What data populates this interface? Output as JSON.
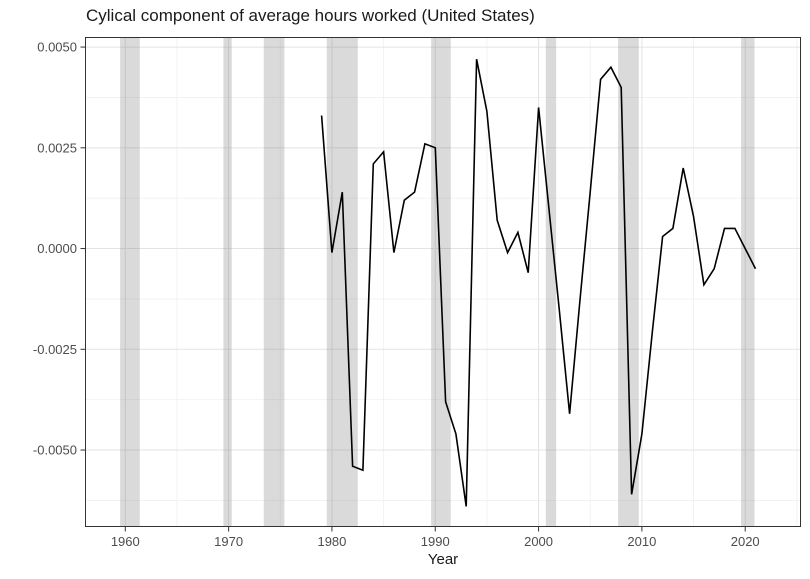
{
  "figure": {
    "title": "Cylical component of average hours worked (United States)",
    "x_axis_label": "Year"
  },
  "chart_data": {
    "type": "line",
    "title": "Cylical component of average hours worked (United States)",
    "xlabel": "Year",
    "ylabel": "",
    "legend": false,
    "grid": "major and minor, light gray on white panel with dark border",
    "x": [
      1979,
      1980,
      1981,
      1982,
      1983,
      1984,
      1985,
      1986,
      1987,
      1988,
      1989,
      1990,
      1991,
      1992,
      1993,
      1994,
      1995,
      1996,
      1997,
      1998,
      1999,
      2000,
      2001,
      2002,
      2003,
      2004,
      2005,
      2006,
      2007,
      2008,
      2009,
      2010,
      2011,
      2012,
      2013,
      2014,
      2015,
      2016,
      2017,
      2018,
      2019,
      2020,
      2021
    ],
    "series": [
      {
        "name": "cyclical-component-of-average-hours-worked",
        "values": [
          0.0033,
          -0.0001,
          0.0014,
          -0.0054,
          -0.0055,
          0.0021,
          0.0024,
          -0.0001,
          0.0012,
          0.0014,
          0.0026,
          0.0025,
          -0.0038,
          -0.0046,
          -0.0064,
          0.0047,
          0.0034,
          0.0007,
          -0.0001,
          0.0004,
          -0.0006,
          0.0035,
          0.001,
          -0.0015,
          -0.0041,
          -0.0013,
          0.0014,
          0.0042,
          0.0045,
          0.004,
          -0.0061,
          -0.0046,
          -0.0021,
          0.0003,
          0.0005,
          0.002,
          0.0008,
          -0.0009,
          -0.0005,
          0.0005,
          0.0005,
          0.0,
          -0.0005
        ]
      }
    ],
    "recession_bands": [
      [
        1959.5,
        1961.4
      ],
      [
        1969.5,
        1970.3
      ],
      [
        1973.4,
        1975.4
      ],
      [
        1979.5,
        1982.5
      ],
      [
        1989.6,
        1991.5
      ],
      [
        2000.7,
        2001.7
      ],
      [
        2007.7,
        2009.7
      ],
      [
        2019.6,
        2020.9
      ]
    ],
    "x_ticks": [
      1960,
      1970,
      1980,
      1990,
      2000,
      2010,
      2020
    ],
    "x_minor_ticks": [
      1965,
      1975,
      1985,
      1995,
      2005,
      2015,
      2025
    ],
    "y_ticks": [
      "0.0050",
      "0.0025",
      "0.0000",
      "-0.0025",
      "-0.0050"
    ],
    "y_tick_values": [
      0.005,
      0.0025,
      0.0,
      -0.0025,
      -0.005
    ],
    "y_minor_tick_values": [
      0.00375,
      0.00125,
      -0.00125,
      -0.00375,
      -0.00625
    ],
    "xlim": [
      1956.1,
      2025.4
    ],
    "ylim": [
      -0.00691,
      0.00525
    ],
    "colors": {
      "line": "#000000",
      "recession_band": "#787878",
      "recession_band_opacity": "0.27",
      "grid_major": "#e3e3e3",
      "grid_minor": "#f1f1f1",
      "panel_border": "#333333",
      "tick_mark": "#333333",
      "axis_text": "#4d4d4d",
      "title_text": "#1a1a1a",
      "panel_background": "#ffffff"
    }
  }
}
